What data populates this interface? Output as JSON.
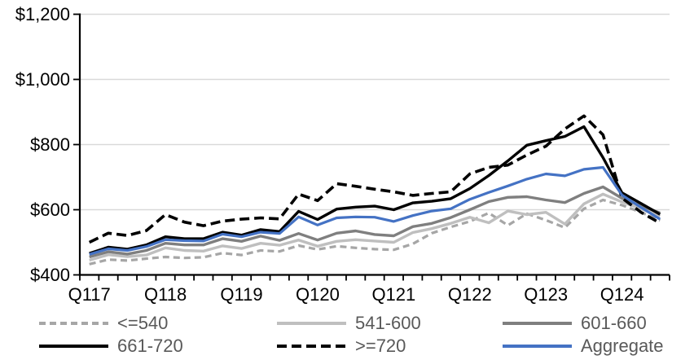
{
  "chart_data": {
    "type": "line",
    "title": "",
    "y_axis": {
      "min": 400,
      "max": 1200,
      "step": 200,
      "tick_labels": [
        "$400",
        "$600",
        "$800",
        "$1,000",
        "$1,200"
      ],
      "grid": true
    },
    "x_axis": {
      "tick_labels": [
        "Q117",
        "Q118",
        "Q119",
        "Q120",
        "Q121",
        "Q122",
        "Q123",
        "Q124"
      ],
      "label_every": 4,
      "n_points": 31
    },
    "legend": {
      "position": "bottom",
      "rows": 2,
      "columns": 3
    },
    "series": [
      {
        "name": "<=540",
        "color": "#A6A6A6",
        "dash": [
          8,
          5
        ],
        "width": 3.2,
        "values": [
          433,
          447,
          444,
          450,
          455,
          452,
          454,
          467,
          461,
          475,
          472,
          490,
          478,
          488,
          483,
          479,
          477,
          495,
          528,
          547,
          564,
          590,
          552,
          588,
          568,
          545,
          603,
          630,
          614,
          592,
          567
        ]
      },
      {
        "name": "541-600",
        "color": "#BFBFBF",
        "dash": null,
        "width": 3.4,
        "values": [
          445,
          462,
          456,
          461,
          483,
          475,
          473,
          489,
          481,
          497,
          491,
          507,
          488,
          503,
          508,
          504,
          500,
          530,
          542,
          558,
          577,
          560,
          596,
          585,
          592,
          556,
          618,
          648,
          624,
          603,
          580
        ]
      },
      {
        "name": "601-660",
        "color": "#7F7F7F",
        "dash": null,
        "width": 3.4,
        "values": [
          455,
          471,
          464,
          475,
          497,
          492,
          492,
          511,
          503,
          519,
          506,
          527,
          507,
          528,
          535,
          524,
          520,
          548,
          558,
          576,
          600,
          625,
          638,
          640,
          630,
          622,
          650,
          670,
          635,
          612,
          590
        ]
      },
      {
        "name": "661-720",
        "color": "#000000",
        "dash": null,
        "width": 3.4,
        "values": [
          466,
          485,
          479,
          492,
          517,
          511,
          511,
          531,
          522,
          539,
          533,
          595,
          570,
          602,
          608,
          611,
          600,
          621,
          626,
          634,
          665,
          705,
          750,
          798,
          812,
          825,
          855,
          760,
          652,
          619,
          586
        ]
      },
      {
        "name": ">=720",
        "color": "#000000",
        "dash": [
          12,
          6
        ],
        "width": 3.6,
        "values": [
          500,
          528,
          521,
          536,
          585,
          562,
          551,
          565,
          571,
          575,
          572,
          648,
          628,
          680,
          672,
          663,
          655,
          644,
          650,
          655,
          710,
          730,
          737,
          768,
          795,
          848,
          888,
          830,
          636,
          592,
          559
        ]
      },
      {
        "name": "Aggregate",
        "color": "#4472C4",
        "dash": null,
        "width": 3.2,
        "values": [
          463,
          480,
          475,
          487,
          508,
          505,
          504,
          525,
          517,
          531,
          527,
          578,
          553,
          575,
          578,
          577,
          564,
          582,
          596,
          603,
          632,
          653,
          673,
          694,
          710,
          704,
          724,
          730,
          645,
          607,
          571
        ]
      }
    ],
    "colors": {
      "gridline": "#D9D9D9",
      "axis": "#000000",
      "axis_text": "#000000",
      "legend_text": "#595959",
      "background": "#FFFFFF"
    }
  }
}
